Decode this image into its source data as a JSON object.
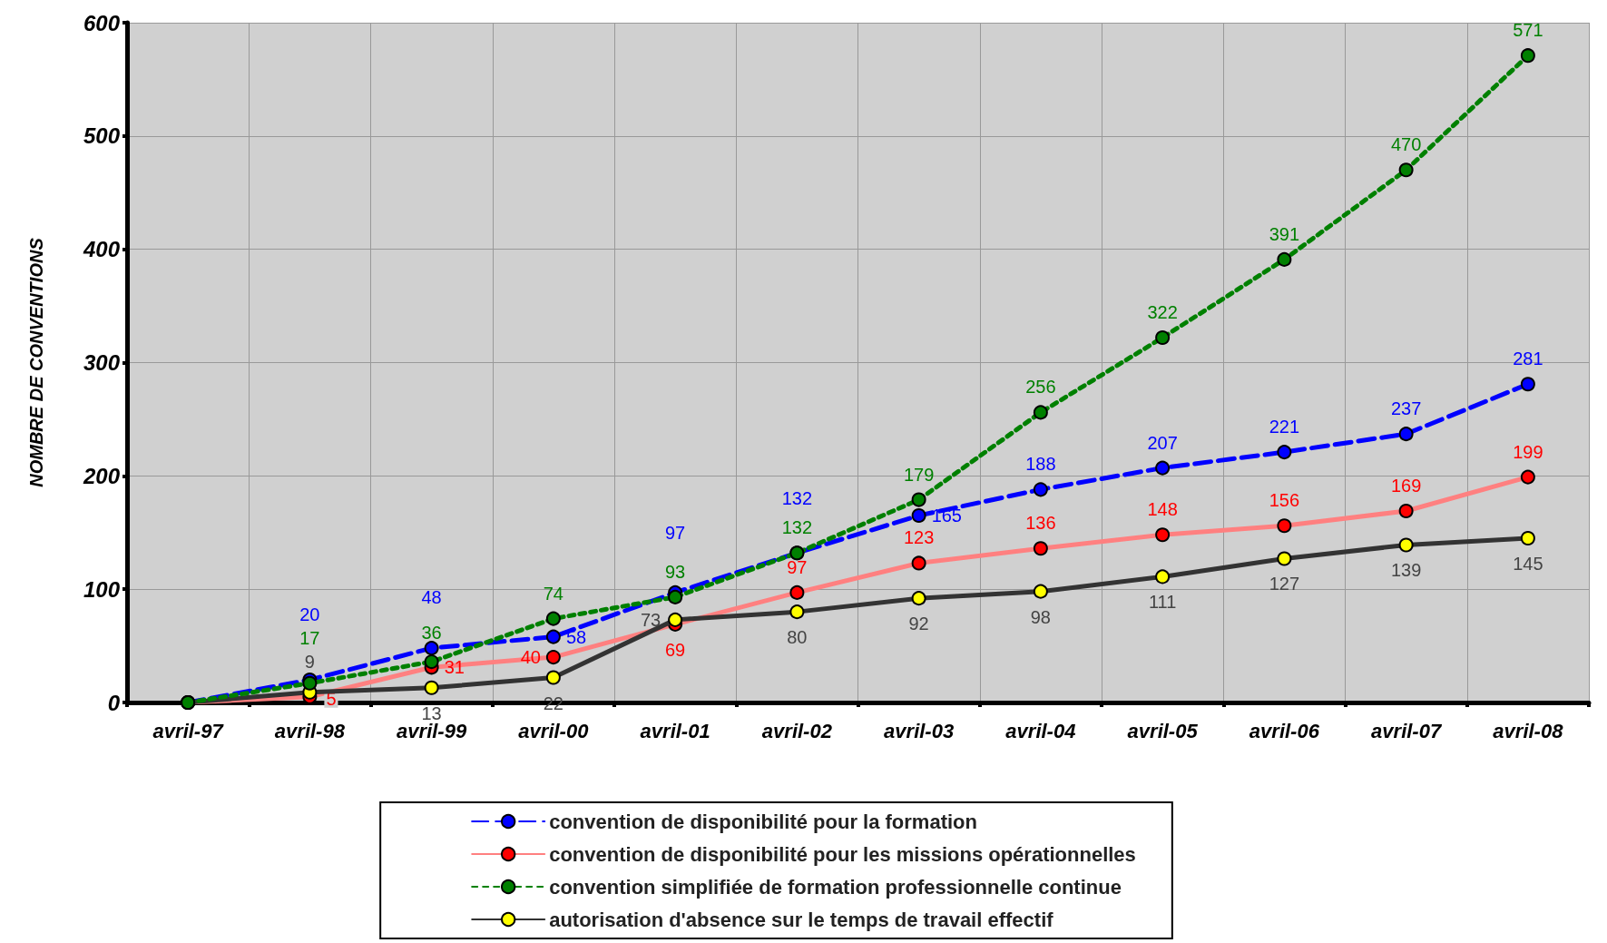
{
  "chart_data": {
    "type": "line",
    "ylabel": "NOMBRE DE CONVENTIONS",
    "categories": [
      "avril-97",
      "avril-98",
      "avril-99",
      "avril-00",
      "avril-01",
      "avril-02",
      "avril-03",
      "avril-04",
      "avril-05",
      "avril-06",
      "avril-07",
      "avril-08"
    ],
    "series": [
      {
        "name": "convention de disponibilité pour la formation",
        "color": "#0000ff",
        "line_style": "dashed",
        "values": [
          0,
          20,
          48,
          58,
          97,
          132,
          165,
          188,
          207,
          221,
          237,
          281
        ],
        "value_labels": [
          null,
          "20",
          "48",
          "58",
          "97",
          "132",
          "165",
          "188",
          "207",
          "221",
          "237",
          "281"
        ]
      },
      {
        "name": "convention de disponibilité pour les missions opérationnelles",
        "color": "#ff0000",
        "line_style": "solid",
        "values": [
          0,
          5,
          31,
          40,
          69,
          97,
          123,
          136,
          148,
          156,
          169,
          199
        ],
        "value_labels": [
          null,
          "5",
          "31",
          "40",
          "69",
          "97",
          "123",
          "136",
          "148",
          "156",
          "169",
          "199"
        ]
      },
      {
        "name": "convention simplifiée de formation professionnelle continue",
        "color": "#008000",
        "line_style": "dotted",
        "values": [
          0,
          17,
          36,
          74,
          93,
          132,
          179,
          256,
          322,
          391,
          470,
          571
        ],
        "value_labels": [
          null,
          "17",
          "36",
          "74",
          "93",
          "132",
          "179",
          "256",
          "322",
          "391",
          "470",
          "571"
        ]
      },
      {
        "name": "autorisation d'absence sur le temps de travail effectif",
        "color": "#ffff00",
        "line_style": "solid",
        "values": [
          0,
          9,
          13,
          22,
          73,
          80,
          92,
          98,
          111,
          127,
          139,
          145
        ],
        "value_labels": [
          null,
          "9",
          "13",
          "22",
          "73",
          "80",
          "92",
          "98",
          "111",
          "127",
          "139",
          "145"
        ]
      }
    ],
    "ylim": [
      0,
      600
    ],
    "yticks": [
      0,
      100,
      200,
      300,
      400,
      500,
      600
    ],
    "grid": true,
    "legend": "bottom",
    "marker": "circle"
  }
}
